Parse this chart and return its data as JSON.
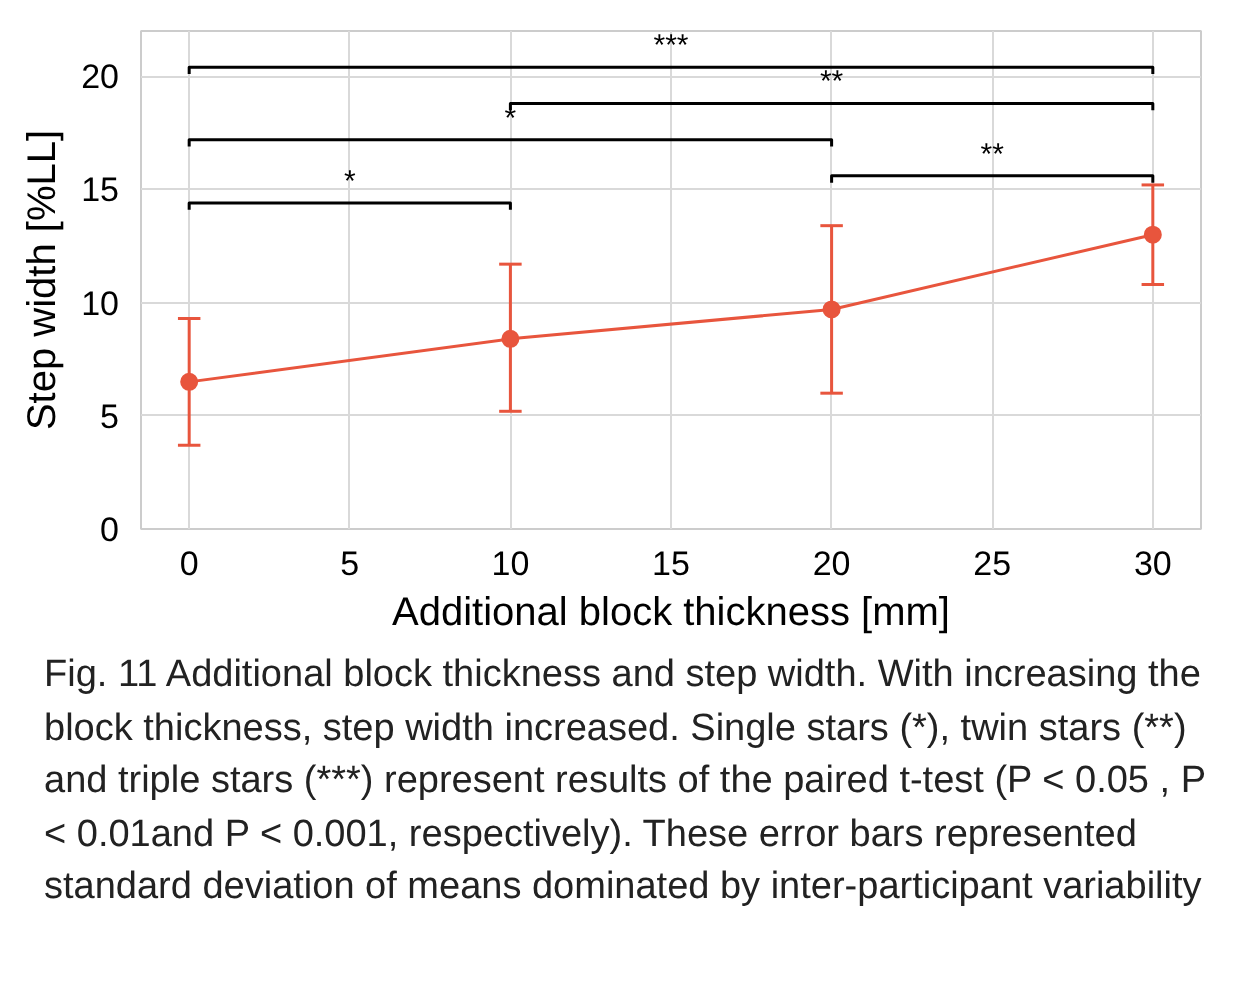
{
  "chart_data": {
    "type": "line",
    "xlabel": "Additional block thickness [mm]",
    "ylabel": "Step width [%LL]",
    "x": [
      0,
      10,
      20,
      30
    ],
    "xlim": [
      -1.5,
      31.5
    ],
    "xticks": [
      0,
      5,
      10,
      15,
      20,
      25,
      30
    ],
    "ylim": [
      0,
      22
    ],
    "yticks": [
      0,
      5,
      10,
      15,
      20
    ],
    "grid": true,
    "marker": "circle",
    "line_style": "solid",
    "series": [
      {
        "color": "#e8553d",
        "values": [
          6.5,
          8.4,
          9.7,
          13.0
        ],
        "errors": [
          [
            3.7,
            9.3
          ],
          [
            5.2,
            11.7
          ],
          [
            6.0,
            13.4
          ],
          [
            10.8,
            15.2
          ]
        ]
      },
      {
        "color": "#000000",
        "marker": "none",
        "x": [
          0,
          0,
          10,
          10
        ],
        "values": [
          14.1,
          14.4,
          14.4,
          14.1
        ]
      },
      {
        "color": "#000000",
        "marker": "none",
        "x": [
          20,
          20,
          30,
          30
        ],
        "values": [
          15.3,
          15.6,
          15.6,
          15.3
        ]
      },
      {
        "color": "#000000",
        "marker": "none",
        "x": [
          0,
          0,
          20,
          20
        ],
        "values": [
          16.9,
          17.2,
          17.2,
          16.9
        ]
      },
      {
        "color": "#000000",
        "marker": "none",
        "x": [
          10,
          10,
          30,
          30
        ],
        "values": [
          18.5,
          18.8,
          18.8,
          18.5
        ]
      },
      {
        "color": "#000000",
        "marker": "none",
        "x": [
          0,
          0,
          30,
          30
        ],
        "values": [
          20.1,
          20.4,
          20.4,
          20.1
        ]
      }
    ],
    "annotations": [
      "*",
      "**",
      "*",
      "**",
      "***",
      "Fig. 11 Additional block thickness and step width. With increasing the block thickness, step width increased. Single stars (*), twin stars (**) and triple stars (***) represent results of the paired t-test (P < 0.05 , P < 0.01and P < 0.001, respectively). These error bars represented standard deviation of means dominated by inter-participant variability"
    ]
  }
}
